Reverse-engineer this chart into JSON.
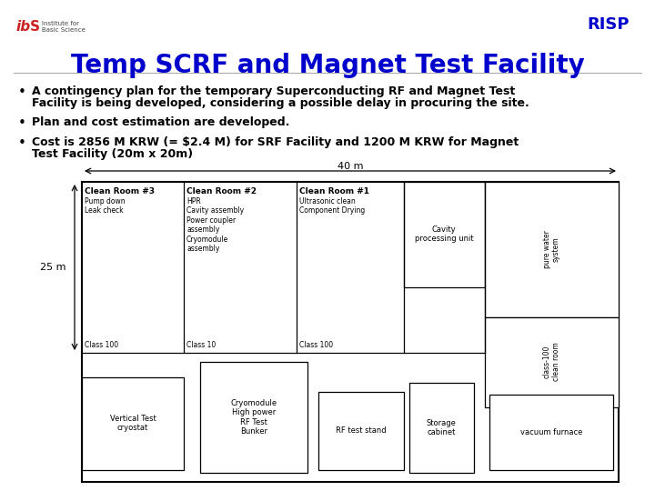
{
  "title": "Temp SCRF and Magnet Test Facility",
  "title_color": "#0000CC",
  "title_fontsize": 20,
  "bullet1_line1": "A contingency plan for the temporary Superconducting RF and Magnet Test",
  "bullet1_line2": "Facility is being developed, considering a possible delay in procuring the site.",
  "bullet2": "Plan and cost estimation are developed.",
  "bullet3_line1": "Cost is 2856 M KRW (= $2.4 M) for SRF Facility and 1200 M KRW for Magnet",
  "bullet3_line2": "Test Facility (20m x 20m)",
  "bg_color": "#ffffff",
  "text_color": "#000000",
  "bullet_fontsize": 9.0
}
